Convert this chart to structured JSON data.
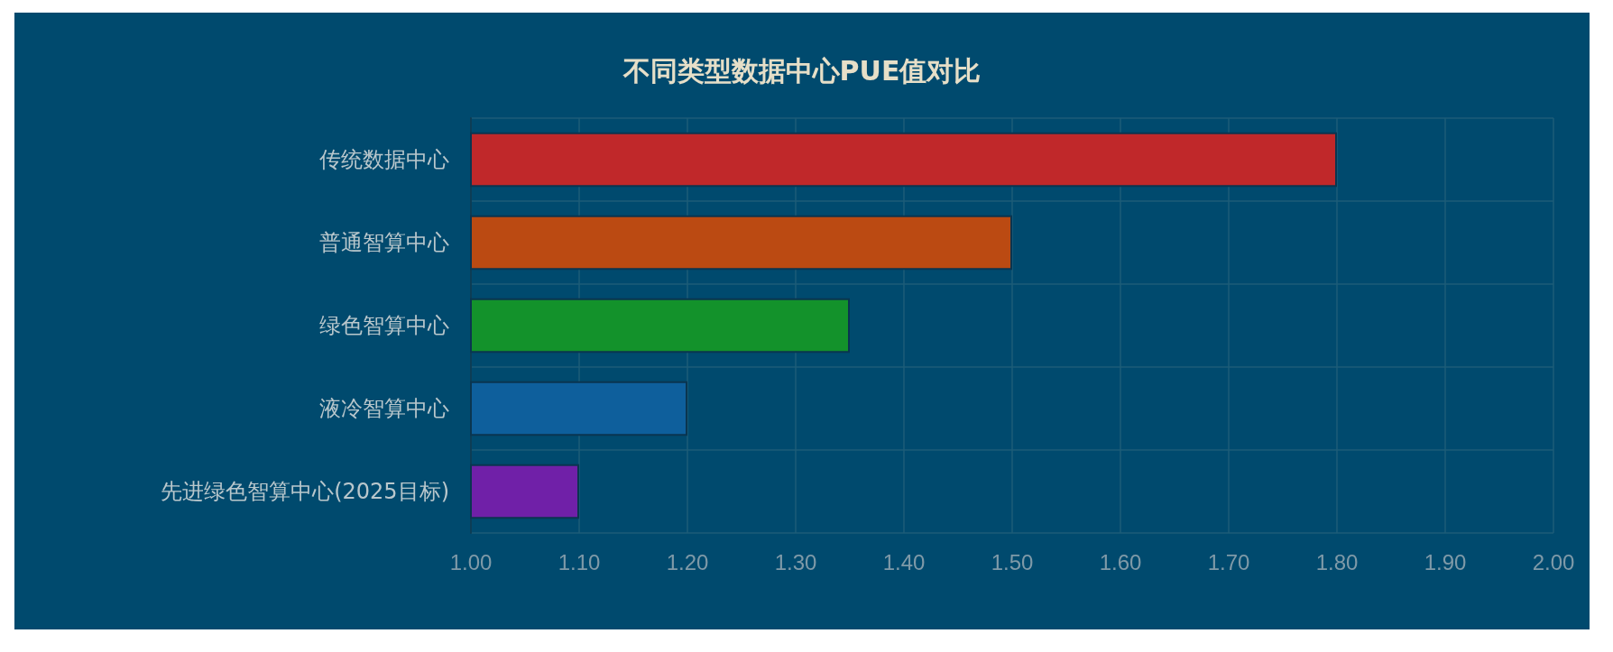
{
  "chart_data": {
    "type": "bar",
    "orientation": "horizontal",
    "title": "不同类型数据中心PUE值对比",
    "categories": [
      "传统数据中心",
      "普通智算中心",
      "绿色智算中心",
      "液冷智算中心",
      "先进绿色智算中心(2025目标)"
    ],
    "values": [
      1.8,
      1.5,
      1.35,
      1.2,
      1.1
    ],
    "colors": [
      "#c0282a",
      "#bb4a12",
      "#13922b",
      "#0e5f9c",
      "#7020a8"
    ],
    "xlim": [
      1,
      2
    ],
    "xticks": [
      {
        "value": 1,
        "label": "1.00"
      },
      {
        "value": 1.1,
        "label": "1.10"
      },
      {
        "value": 1.2,
        "label": "1.20"
      },
      {
        "value": 1.3,
        "label": "1.30"
      },
      {
        "value": 1.4,
        "label": "1.40"
      },
      {
        "value": 1.5,
        "label": "1.50"
      },
      {
        "value": 1.6,
        "label": "1.60"
      },
      {
        "value": 1.7,
        "label": "1.70"
      },
      {
        "value": 1.8,
        "label": "1.80"
      },
      {
        "value": 1.9,
        "label": "1.90"
      },
      {
        "value": 2,
        "label": "2.00"
      }
    ],
    "grid": true
  }
}
